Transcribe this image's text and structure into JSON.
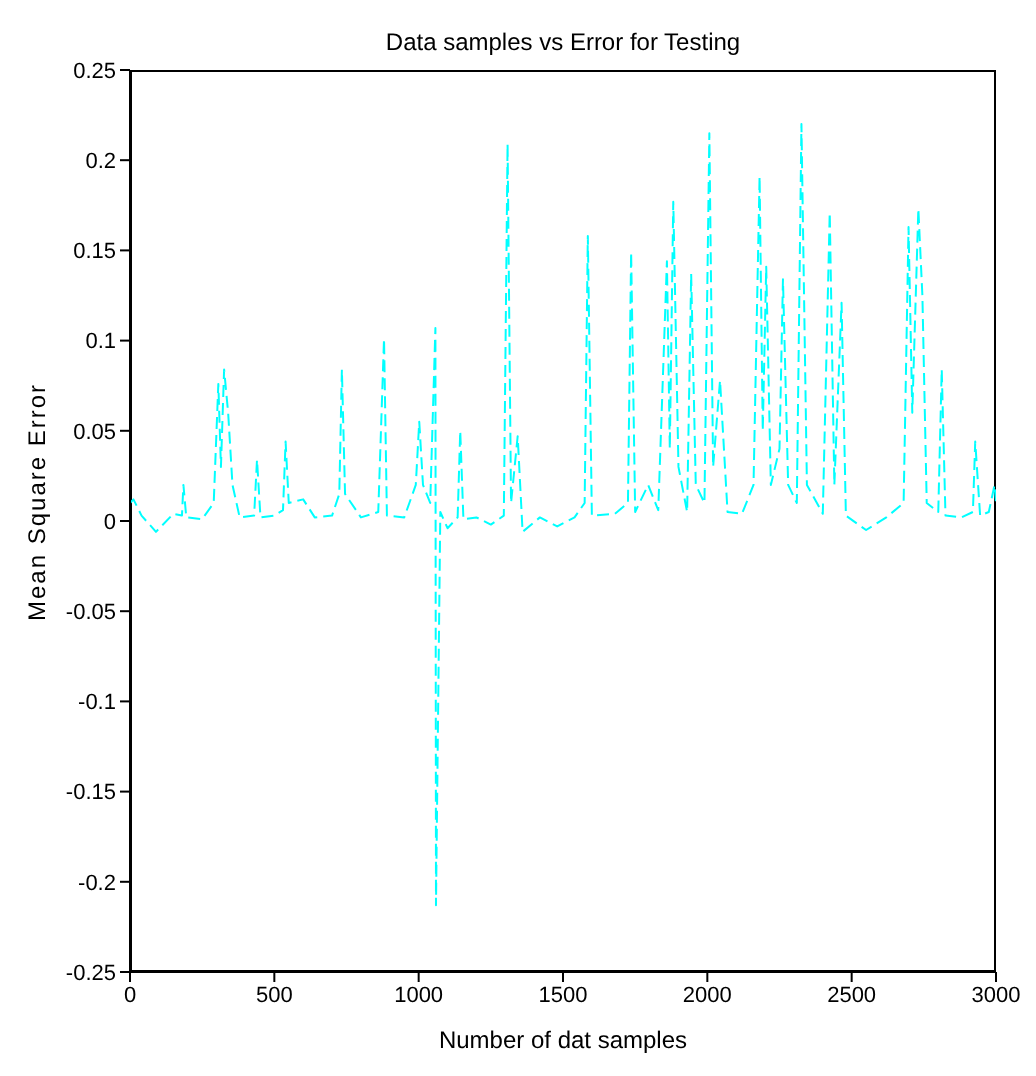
{
  "chart_data": {
    "type": "line",
    "title": "Data samples vs Error for Testing",
    "xlabel": "Number of dat samples",
    "ylabel": "Mean Square Error",
    "xlim": [
      0,
      3000
    ],
    "xticks": [
      0,
      500,
      1000,
      1500,
      2000,
      2500,
      3000
    ],
    "ylim": [
      -0.25,
      0.25
    ],
    "yticks": [
      -0.25,
      -0.2,
      -0.15,
      -0.1,
      -0.05,
      0,
      0.05,
      0.1,
      0.15,
      0.2,
      0.25
    ],
    "grid": false,
    "legend": false,
    "marker": "none",
    "line_style": "dashed",
    "series": [
      {
        "color": "#00ffff",
        "x": [
          0,
          12,
          40,
          90,
          150,
          180,
          185,
          195,
          250,
          290,
          306,
          315,
          326,
          340,
          355,
          380,
          430,
          440,
          452,
          500,
          530,
          539,
          550,
          600,
          640,
          700,
          725,
          734,
          745,
          800,
          860,
          880,
          890,
          950,
          990,
          1002,
          1015,
          1040,
          1058,
          1060,
          1075,
          1100,
          1135,
          1144,
          1155,
          1200,
          1250,
          1295,
          1308,
          1320,
          1343,
          1360,
          1420,
          1480,
          1540,
          1575,
          1586,
          1600,
          1680,
          1725,
          1736,
          1750,
          1795,
          1830,
          1860,
          1870,
          1882,
          1900,
          1930,
          1944,
          1960,
          1990,
          2007,
          2020,
          2044,
          2070,
          2120,
          2160,
          2181,
          2192,
          2204,
          2220,
          2250,
          2262,
          2280,
          2310,
          2326,
          2345,
          2400,
          2424,
          2440,
          2465,
          2480,
          2550,
          2620,
          2680,
          2697,
          2710,
          2731,
          2745,
          2760,
          2800,
          2812,
          2825,
          2880,
          2920,
          2928,
          2945,
          2975,
          2995,
          3000
        ],
        "values": [
          0.01,
          0.012,
          0.003,
          -0.006,
          0.004,
          0.003,
          0.02,
          0.002,
          0.001,
          0.01,
          0.076,
          0.03,
          0.084,
          0.06,
          0.02,
          0.002,
          0.003,
          0.034,
          0.002,
          0.003,
          0.006,
          0.044,
          0.01,
          0.012,
          0.002,
          0.003,
          0.015,
          0.084,
          0.015,
          0.002,
          0.005,
          0.101,
          0.003,
          0.002,
          0.02,
          0.055,
          0.02,
          0.01,
          0.107,
          -0.213,
          0.005,
          -0.004,
          0.002,
          0.05,
          0.001,
          0.002,
          -0.002,
          0.003,
          0.209,
          0.01,
          0.047,
          -0.006,
          0.002,
          -0.003,
          0.002,
          0.01,
          0.158,
          0.003,
          0.004,
          0.01,
          0.149,
          0.005,
          0.02,
          0.006,
          0.144,
          0.04,
          0.177,
          0.03,
          0.005,
          0.137,
          0.02,
          0.01,
          0.215,
          0.03,
          0.078,
          0.005,
          0.004,
          0.02,
          0.191,
          0.05,
          0.141,
          0.02,
          0.04,
          0.134,
          0.02,
          0.01,
          0.22,
          0.02,
          0.004,
          0.171,
          0.02,
          0.121,
          0.003,
          -0.005,
          0.002,
          0.01,
          0.163,
          0.06,
          0.173,
          0.125,
          0.01,
          0.005,
          0.084,
          0.003,
          0.002,
          0.005,
          0.044,
          0.003,
          0.005,
          0.02,
          0.01
        ]
      }
    ]
  }
}
